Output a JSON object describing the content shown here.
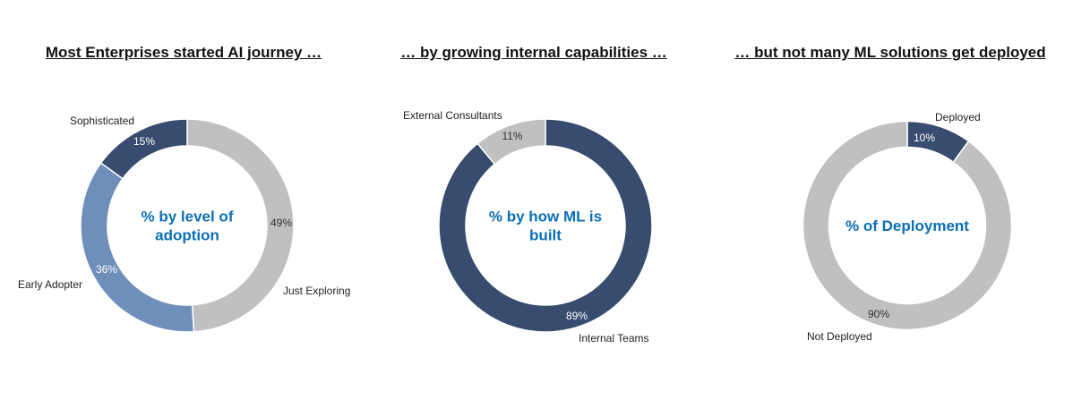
{
  "chart_data": [
    {
      "type": "pie",
      "title": "Most Enterprises started AI journey …",
      "center_label": [
        "% by level of",
        "adoption"
      ],
      "slices": [
        {
          "label": "Just Exploring",
          "value": 49,
          "display": "49%",
          "color": "#c0c0c0"
        },
        {
          "label": "Early Adopter",
          "value": 36,
          "display": "36%",
          "color": "#6f8fbb"
        },
        {
          "label": "Sophisticated",
          "value": 15,
          "display": "15%",
          "color": "#374c6e"
        }
      ]
    },
    {
      "type": "pie",
      "title": "… by growing internal capabilities …",
      "center_label": [
        "% by how ML is",
        "built"
      ],
      "slices": [
        {
          "label": "Internal Teams",
          "value": 89,
          "display": "89%",
          "color": "#374c6e"
        },
        {
          "label": "External Consultants",
          "value": 11,
          "display": "11%",
          "color": "#c0c0c0"
        }
      ]
    },
    {
      "type": "pie",
      "title": "… but not many ML solutions get deployed",
      "center_label": [
        "% of Deployment"
      ],
      "slices": [
        {
          "label": "Deployed",
          "value": 10,
          "display": "10%",
          "color": "#374c6e"
        },
        {
          "label": "Not Deployed",
          "value": 90,
          "display": "90%",
          "color": "#c0c0c0"
        }
      ]
    }
  ]
}
